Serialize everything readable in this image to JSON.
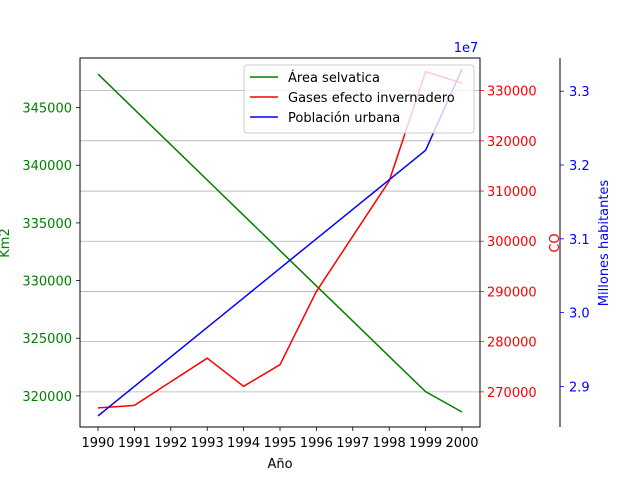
{
  "chart_data": {
    "type": "line",
    "xlabel": "Año",
    "categories": [
      1990,
      1991,
      1992,
      1993,
      1994,
      1995,
      1996,
      1997,
      1998,
      1999,
      2000
    ],
    "grid": "horizontal (right CO axis)",
    "legend_placement": "top-right",
    "axes": {
      "left": {
        "label": "Km2",
        "color": "#008000",
        "range": [
          317300,
          349300
        ],
        "ticks": [
          "320000",
          "325000",
          "330000",
          "335000",
          "340000",
          "345000"
        ],
        "tick_values": [
          320000,
          325000,
          330000,
          335000,
          340000,
          345000
        ]
      },
      "right": {
        "label": "CO",
        "color": "#ff0000",
        "range": [
          263000,
          336500
        ],
        "ticks": [
          "270000",
          "280000",
          "290000",
          "300000",
          "310000",
          "320000",
          "330000"
        ],
        "tick_values": [
          270000,
          280000,
          290000,
          300000,
          310000,
          320000,
          330000
        ]
      },
      "outer_right": {
        "label": "Millones habitantes",
        "color": "#0000ff",
        "range": [
          28450000,
          33450000
        ],
        "ticks": [
          "2.9",
          "3.0",
          "3.1",
          "3.2",
          "3.3"
        ],
        "tick_values": [
          29000000,
          30000000,
          31000000,
          32000000,
          33000000
        ],
        "offset_text": "1e7"
      }
    },
    "series": [
      {
        "name": "Área selvatica",
        "color": "#008000",
        "axis": "left",
        "values": [
          347900,
          344840,
          341780,
          338720,
          335660,
          332600,
          329540,
          326480,
          323420,
          320360,
          318600
        ]
      },
      {
        "name": "Gases efecto invernadero",
        "color": "#ff0000",
        "axis": "right",
        "values": [
          266800,
          267300,
          272000,
          276700,
          271100,
          275400,
          290000,
          301000,
          312000,
          333800,
          331500
        ]
      },
      {
        "name": "Población urbana",
        "color": "#0000ff",
        "axis": "outer_right",
        "values": [
          28600000,
          29000000,
          29400000,
          29800000,
          30200000,
          30600000,
          31000000,
          31400000,
          31800000,
          32200000,
          33300000
        ]
      }
    ]
  }
}
